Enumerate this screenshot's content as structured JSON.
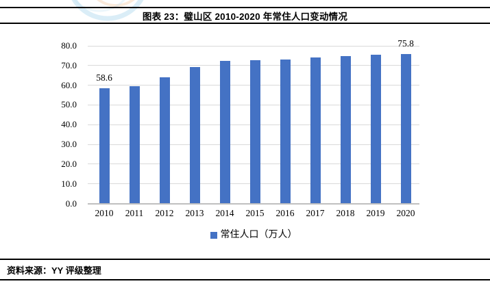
{
  "header": {
    "title": "图表 23：璧山区 2010-2020 年常住人口变动情况"
  },
  "footer": {
    "source": "资料来源：YY 评级整理"
  },
  "chart_data": {
    "type": "bar",
    "title": "图表 23：璧山区 2010-2020 年常住人口变动情况",
    "x": [
      "2010",
      "2011",
      "2012",
      "2013",
      "2014",
      "2015",
      "2016",
      "2017",
      "2018",
      "2019",
      "2020"
    ],
    "series": [
      {
        "name": "常住人口（万人）",
        "values": [
          58.6,
          59.6,
          64.0,
          69.2,
          72.2,
          72.6,
          73.1,
          74.1,
          74.9,
          75.5,
          75.8
        ]
      }
    ],
    "point_labels": [
      {
        "x": "2010",
        "text": "58.6"
      },
      {
        "x": "2020",
        "text": "75.8"
      }
    ],
    "ylim": [
      0,
      80
    ],
    "ytick_labels": [
      "80.0",
      "70.0",
      "60.0",
      "50.0",
      "40.0",
      "30.0",
      "20.0",
      "10.0",
      "0.0"
    ],
    "xlabel": "",
    "ylabel": "",
    "grid": "horizontal",
    "legend_position": "bottom",
    "colors": {
      "bar": "#4472C4",
      "gridline": "#d9d9d9",
      "axisline": "#bfbfbf"
    }
  }
}
